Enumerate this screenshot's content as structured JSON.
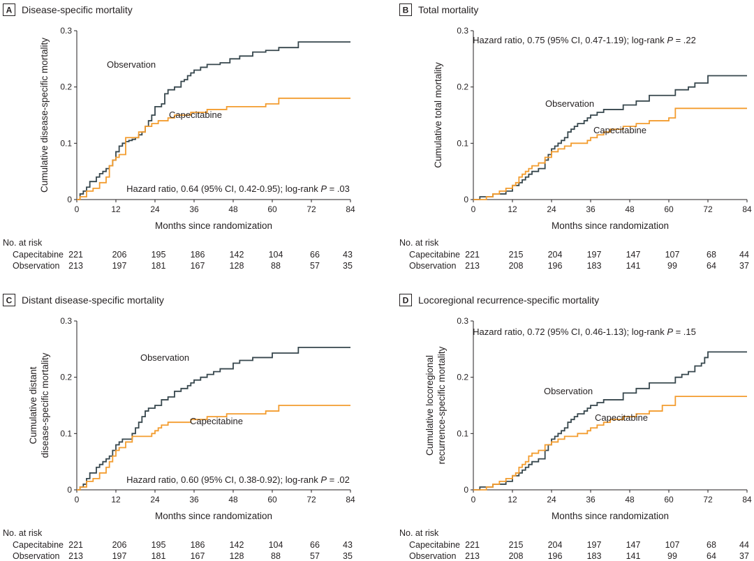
{
  "figure": {
    "xlabel": "Months since randomization",
    "risk_header": "No. at risk",
    "risk_groups": [
      "Capecitabine",
      "Observation"
    ],
    "series_colors": {
      "Observation": "#36464c",
      "Capecitabine": "#f39c2e"
    }
  },
  "chart_data": [
    {
      "type": "line",
      "id": "A",
      "letter": "A",
      "title": "Disease-specific mortality",
      "xlabel": "Months since randomization",
      "ylabel": [
        "Cumulative disease-specific mortality"
      ],
      "xlim": [
        0,
        84
      ],
      "ylim": [
        0,
        0.3
      ],
      "xticks": [
        0,
        12,
        24,
        36,
        48,
        60,
        72,
        84
      ],
      "yticks": [
        "0",
        "0.1",
        "0.2",
        "0.3"
      ],
      "annotation": {
        "prefix": "Hazard ratio, 0.64 (95% CI, 0.42-0.95); log-rank ",
        "italic": "P",
        "suffix": " = .03"
      },
      "series_labels": {
        "Observation": "Observation",
        "Capecitabine": "Capecitabine"
      },
      "series": [
        {
          "name": "Observation",
          "x": [
            0,
            1,
            2,
            3,
            4,
            6,
            7,
            8,
            9,
            10,
            11,
            12,
            13,
            14,
            15,
            16,
            17,
            18,
            19,
            20,
            21,
            22,
            23,
            24,
            26,
            27,
            28,
            30,
            32,
            33,
            34,
            35,
            36,
            38,
            40,
            44,
            47,
            50,
            54,
            58,
            62,
            68,
            84
          ],
          "y": [
            0,
            0.01,
            0.015,
            0.022,
            0.032,
            0.04,
            0.046,
            0.05,
            0.055,
            0.06,
            0.07,
            0.085,
            0.095,
            0.1,
            0.103,
            0.105,
            0.107,
            0.11,
            0.115,
            0.12,
            0.13,
            0.14,
            0.15,
            0.165,
            0.17,
            0.188,
            0.195,
            0.2,
            0.21,
            0.213,
            0.22,
            0.225,
            0.23,
            0.235,
            0.24,
            0.243,
            0.25,
            0.255,
            0.262,
            0.265,
            0.27,
            0.28,
            0.28
          ]
        },
        {
          "name": "Capecitabine",
          "x": [
            0,
            1,
            3,
            5,
            7,
            9,
            10,
            11,
            12,
            13,
            15,
            18,
            19,
            20,
            21,
            23,
            25,
            26,
            28,
            30,
            35,
            40,
            46,
            58,
            62,
            84
          ],
          "y": [
            0,
            0.005,
            0.015,
            0.02,
            0.03,
            0.04,
            0.06,
            0.07,
            0.075,
            0.08,
            0.11,
            0.11,
            0.12,
            0.12,
            0.13,
            0.135,
            0.14,
            0.14,
            0.145,
            0.15,
            0.155,
            0.16,
            0.165,
            0.17,
            0.18,
            0.18
          ]
        }
      ],
      "risk_table": {
        "Capecitabine": [
          "221",
          "206",
          "195",
          "186",
          "142",
          "104",
          "66",
          "43"
        ],
        "Observation": [
          "213",
          "197",
          "181",
          "167",
          "128",
          "88",
          "57",
          "35"
        ]
      }
    },
    {
      "type": "line",
      "id": "B",
      "letter": "B",
      "title": "Total mortality",
      "xlabel": "Months since randomization",
      "ylabel": [
        "Cumulative total mortality"
      ],
      "xlim": [
        0,
        84
      ],
      "ylim": [
        0,
        0.3
      ],
      "xticks": [
        0,
        12,
        24,
        36,
        48,
        60,
        72,
        84
      ],
      "yticks": [
        "0",
        "0.1",
        "0.2",
        "0.3"
      ],
      "annotation": {
        "prefix": "Hazard ratio, 0.75 (95% CI, 0.47-1.19); log-rank ",
        "italic": "P",
        "suffix": " = .22"
      },
      "series_labels": {
        "Observation": "Observation",
        "Capecitabine": "Capecitabine"
      },
      "series": [
        {
          "name": "Observation",
          "x": [
            0,
            2,
            6,
            10,
            12,
            14,
            15,
            16,
            17,
            18,
            20,
            22,
            23,
            24,
            25,
            26,
            27,
            28,
            29,
            30,
            31,
            32,
            34,
            35,
            36,
            38,
            40,
            46,
            50,
            54,
            62,
            66,
            68,
            72,
            84
          ],
          "y": [
            0,
            0.005,
            0.01,
            0.015,
            0.025,
            0.03,
            0.035,
            0.04,
            0.045,
            0.05,
            0.055,
            0.07,
            0.08,
            0.09,
            0.095,
            0.1,
            0.105,
            0.11,
            0.12,
            0.125,
            0.13,
            0.135,
            0.14,
            0.145,
            0.15,
            0.155,
            0.16,
            0.168,
            0.175,
            0.185,
            0.195,
            0.2,
            0.207,
            0.22,
            0.22
          ]
        },
        {
          "name": "Capecitabine",
          "x": [
            0,
            4,
            6,
            8,
            10,
            12,
            13,
            14,
            15,
            16,
            17,
            18,
            20,
            22,
            24,
            26,
            28,
            30,
            32,
            34,
            35,
            36,
            38,
            40,
            42,
            46,
            50,
            54,
            60,
            62,
            84
          ],
          "y": [
            0,
            0.005,
            0.01,
            0.015,
            0.02,
            0.025,
            0.03,
            0.04,
            0.045,
            0.05,
            0.055,
            0.06,
            0.065,
            0.075,
            0.085,
            0.09,
            0.095,
            0.1,
            0.1,
            0.1,
            0.105,
            0.11,
            0.115,
            0.12,
            0.125,
            0.13,
            0.135,
            0.14,
            0.145,
            0.162,
            0.162
          ]
        }
      ],
      "risk_table": {
        "Capecitabine": [
          "221",
          "215",
          "204",
          "197",
          "147",
          "107",
          "68",
          "44"
        ],
        "Observation": [
          "213",
          "208",
          "196",
          "183",
          "141",
          "99",
          "64",
          "37"
        ]
      }
    },
    {
      "type": "line",
      "id": "C",
      "letter": "C",
      "title": "Distant disease-specific mortality",
      "xlabel": "Months since randomization",
      "ylabel": [
        "Cumulative distant",
        "disease-specific mortality"
      ],
      "xlim": [
        0,
        84
      ],
      "ylim": [
        0,
        0.3
      ],
      "xticks": [
        0,
        12,
        24,
        36,
        48,
        60,
        72,
        84
      ],
      "yticks": [
        "0",
        "0.1",
        "0.2",
        "0.3"
      ],
      "annotation": {
        "prefix": "Hazard ratio, 0.60 (95% CI, 0.38-0.92); log-rank ",
        "italic": "P",
        "suffix": " = .02"
      },
      "series_labels": {
        "Observation": "Observation",
        "Capecitabine": "Capecitabine"
      },
      "series": [
        {
          "name": "Observation",
          "x": [
            0,
            1,
            2,
            3,
            4,
            6,
            7,
            8,
            9,
            10,
            11,
            12,
            13,
            14,
            16,
            17,
            18,
            19,
            20,
            21,
            22,
            23,
            24,
            26,
            28,
            30,
            32,
            34,
            35,
            36,
            38,
            40,
            42,
            44,
            48,
            50,
            54,
            60,
            68,
            84
          ],
          "y": [
            0,
            0.005,
            0.01,
            0.02,
            0.03,
            0.04,
            0.045,
            0.05,
            0.055,
            0.06,
            0.07,
            0.08,
            0.085,
            0.09,
            0.09,
            0.1,
            0.11,
            0.12,
            0.13,
            0.14,
            0.145,
            0.145,
            0.15,
            0.16,
            0.165,
            0.175,
            0.18,
            0.185,
            0.19,
            0.195,
            0.2,
            0.205,
            0.21,
            0.215,
            0.225,
            0.23,
            0.235,
            0.243,
            0.253,
            0.253
          ]
        },
        {
          "name": "Capecitabine",
          "x": [
            0,
            1,
            3,
            5,
            7,
            9,
            10,
            11,
            12,
            13,
            15,
            17,
            18,
            20,
            23,
            24,
            25,
            26,
            28,
            30,
            35,
            40,
            46,
            58,
            62,
            84
          ],
          "y": [
            0,
            0.005,
            0.015,
            0.02,
            0.03,
            0.04,
            0.05,
            0.06,
            0.07,
            0.075,
            0.085,
            0.095,
            0.095,
            0.095,
            0.1,
            0.105,
            0.11,
            0.115,
            0.12,
            0.12,
            0.125,
            0.13,
            0.135,
            0.14,
            0.15,
            0.15
          ]
        }
      ],
      "risk_table": {
        "Capecitabine": [
          "221",
          "206",
          "195",
          "186",
          "142",
          "104",
          "66",
          "43"
        ],
        "Observation": [
          "213",
          "197",
          "181",
          "167",
          "128",
          "88",
          "57",
          "35"
        ]
      }
    },
    {
      "type": "line",
      "id": "D",
      "letter": "D",
      "title": "Locoregional recurrence-specific mortality",
      "xlabel": "Months since randomization",
      "ylabel": [
        "Cumulative locoregional",
        "recurrence-specific mortality"
      ],
      "xlim": [
        0,
        84
      ],
      "ylim": [
        0,
        0.3
      ],
      "xticks": [
        0,
        12,
        24,
        36,
        48,
        60,
        72,
        84
      ],
      "yticks": [
        "0",
        "0.1",
        "0.2",
        "0.3"
      ],
      "annotation": {
        "prefix": "Hazard ratio, 0.72 (95% CI, 0.46-1.13); log-rank ",
        "italic": "P",
        "suffix": " = .15"
      },
      "series_labels": {
        "Observation": "Observation",
        "Capecitabine": "Capecitabine"
      },
      "series": [
        {
          "name": "Observation",
          "x": [
            0,
            2,
            6,
            10,
            12,
            14,
            15,
            16,
            17,
            18,
            20,
            22,
            23,
            24,
            25,
            26,
            27,
            28,
            29,
            30,
            31,
            32,
            34,
            35,
            36,
            38,
            40,
            46,
            50,
            54,
            62,
            64,
            66,
            68,
            70,
            71,
            72,
            84
          ],
          "y": [
            0,
            0.005,
            0.01,
            0.015,
            0.025,
            0.03,
            0.035,
            0.04,
            0.045,
            0.05,
            0.055,
            0.07,
            0.08,
            0.09,
            0.095,
            0.1,
            0.105,
            0.11,
            0.12,
            0.125,
            0.13,
            0.135,
            0.14,
            0.145,
            0.15,
            0.155,
            0.16,
            0.172,
            0.18,
            0.19,
            0.2,
            0.205,
            0.21,
            0.22,
            0.225,
            0.235,
            0.245,
            0.245
          ]
        },
        {
          "name": "Capecitabine",
          "x": [
            0,
            4,
            6,
            8,
            10,
            12,
            13,
            14,
            15,
            16,
            17,
            18,
            20,
            22,
            24,
            26,
            28,
            30,
            32,
            34,
            35,
            36,
            38,
            40,
            42,
            46,
            50,
            54,
            58,
            62,
            84
          ],
          "y": [
            0,
            0.005,
            0.01,
            0.015,
            0.02,
            0.025,
            0.03,
            0.04,
            0.045,
            0.05,
            0.06,
            0.065,
            0.07,
            0.08,
            0.085,
            0.09,
            0.095,
            0.095,
            0.1,
            0.1,
            0.105,
            0.11,
            0.115,
            0.12,
            0.125,
            0.13,
            0.135,
            0.14,
            0.15,
            0.166,
            0.166
          ]
        }
      ],
      "risk_table": {
        "Capecitabine": [
          "221",
          "215",
          "204",
          "197",
          "147",
          "107",
          "68",
          "44"
        ],
        "Observation": [
          "213",
          "208",
          "196",
          "183",
          "141",
          "99",
          "64",
          "37"
        ]
      }
    }
  ]
}
